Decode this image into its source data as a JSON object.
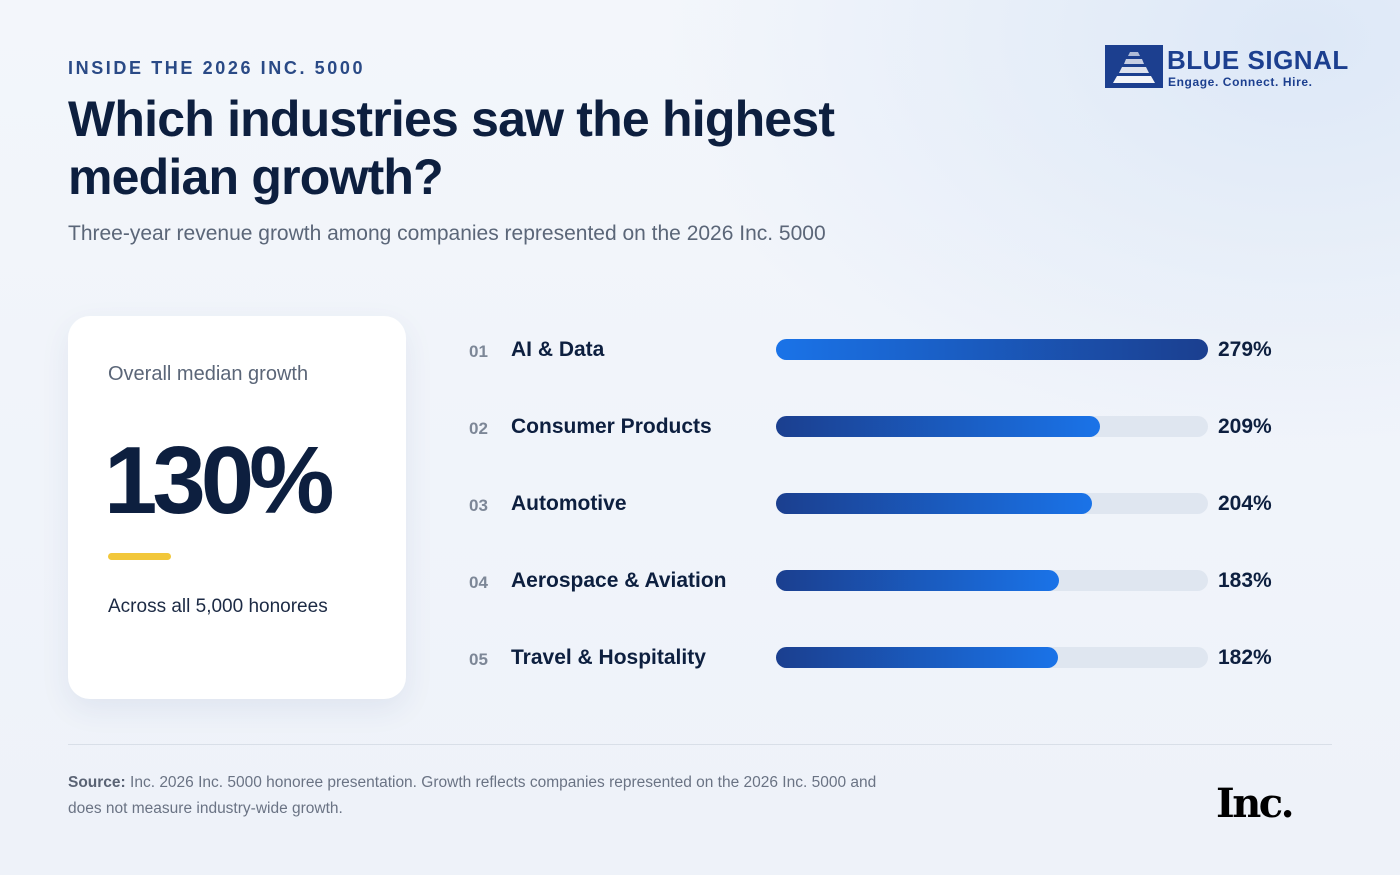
{
  "eyebrow": "INSIDE THE 2026 INC. 5000",
  "title": "Which industries saw the highest median growth?",
  "subtitle": "Three-year revenue growth among companies represented on the 2026 Inc. 5000",
  "logo": {
    "name": "BLUE SIGNAL",
    "tagline": "Engage. Connect. Hire.",
    "color": "#1c3f8f"
  },
  "stat_card": {
    "label": "Overall median growth",
    "value": "130%",
    "note": "Across all 5,000 honorees",
    "accent_color": "#f2c73a"
  },
  "chart_data": {
    "type": "bar",
    "orientation": "horizontal",
    "ranks": [
      "01",
      "02",
      "03",
      "04",
      "05"
    ],
    "categories": [
      "AI & Data",
      "Consumer Products",
      "Automotive",
      "Aerospace & Aviation",
      "Travel & Hospitality"
    ],
    "values": [
      279,
      209,
      204,
      183,
      182
    ],
    "value_labels": [
      "279%",
      "209%",
      "204%",
      "183%",
      "182%"
    ],
    "unit": "%",
    "xlim": [
      0,
      279
    ],
    "grid": false,
    "colors": {
      "bar_start": "#1a73e8",
      "bar_end": "#1b3f8f",
      "track": "#dfe6f0"
    }
  },
  "footer": {
    "source_label": "Source:",
    "source_text": " Inc. 2026 Inc. 5000 honoree presentation. Growth reflects companies represented on the 2026 Inc. 5000 and does not measure industry-wide growth.",
    "publisher": "Inc."
  }
}
